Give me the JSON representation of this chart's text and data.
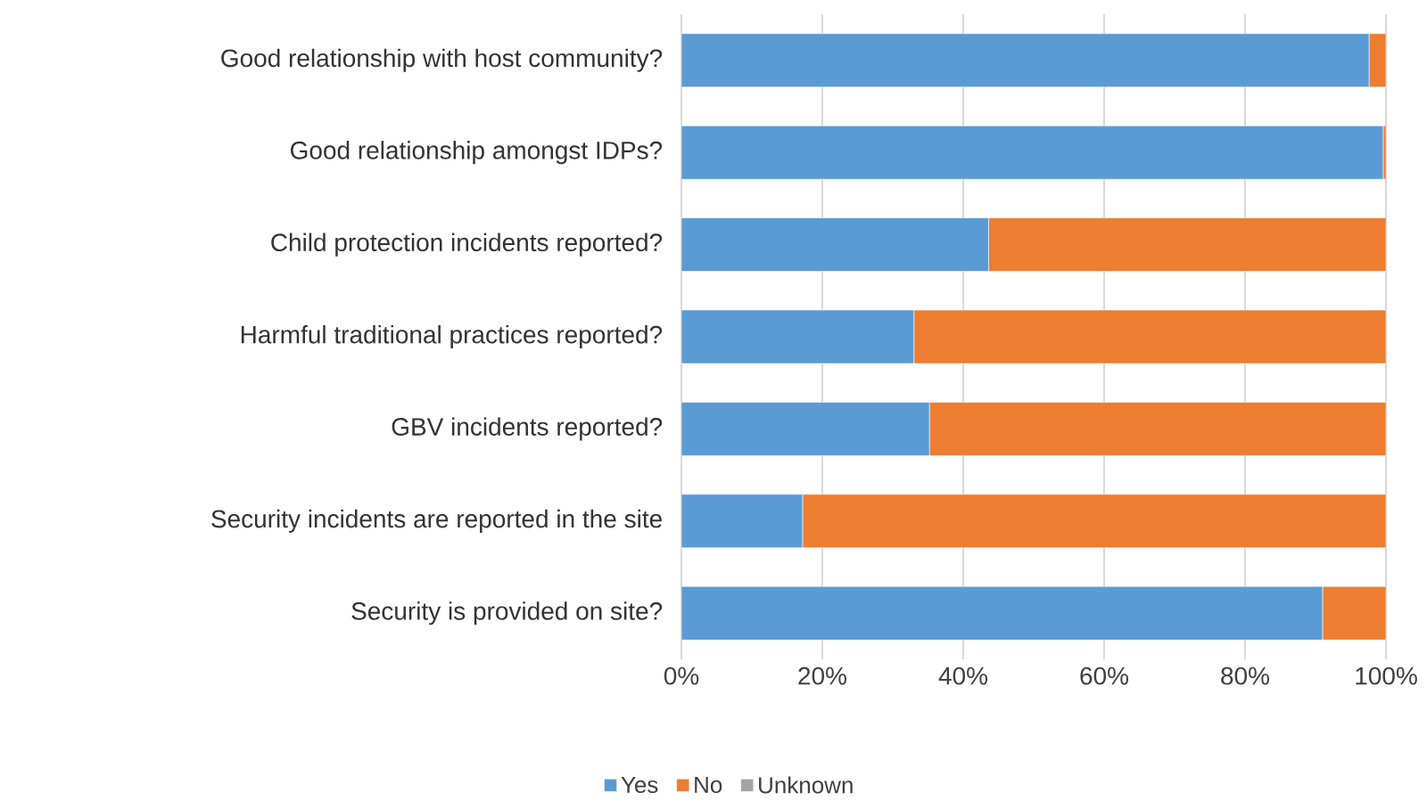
{
  "chart_data": {
    "type": "bar",
    "orientation": "horizontal",
    "stacked": true,
    "categories": [
      "Good relationship with host community?",
      "Good relationship amongst IDPs?",
      "Child protection incidents reported?",
      "Harmful traditional practices reported?",
      "GBV incidents reported?",
      "Security incidents are reported in the site",
      "Security is provided on site?"
    ],
    "series": [
      {
        "name": "Yes",
        "color": "#5b9bd5",
        "values": [
          97.6,
          99.6,
          43.6,
          33.0,
          35.2,
          17.2,
          91.0
        ]
      },
      {
        "name": "No",
        "color": "#ed7d31",
        "values": [
          2.4,
          0.4,
          56.4,
          67.0,
          64.8,
          82.8,
          9.0
        ]
      },
      {
        "name": "Unknown",
        "color": "#a5a5a5",
        "values": [
          0,
          0,
          0,
          0,
          0,
          0,
          0
        ]
      }
    ],
    "xlim": [
      0,
      100
    ],
    "xticks": [
      {
        "value": 0,
        "label": "0%"
      },
      {
        "value": 20,
        "label": "20%"
      },
      {
        "value": 40,
        "label": "40%"
      },
      {
        "value": 60,
        "label": "60%"
      },
      {
        "value": 80,
        "label": "80%"
      },
      {
        "value": 100,
        "label": "100%"
      }
    ],
    "grid": "x",
    "legend": "bottom"
  }
}
